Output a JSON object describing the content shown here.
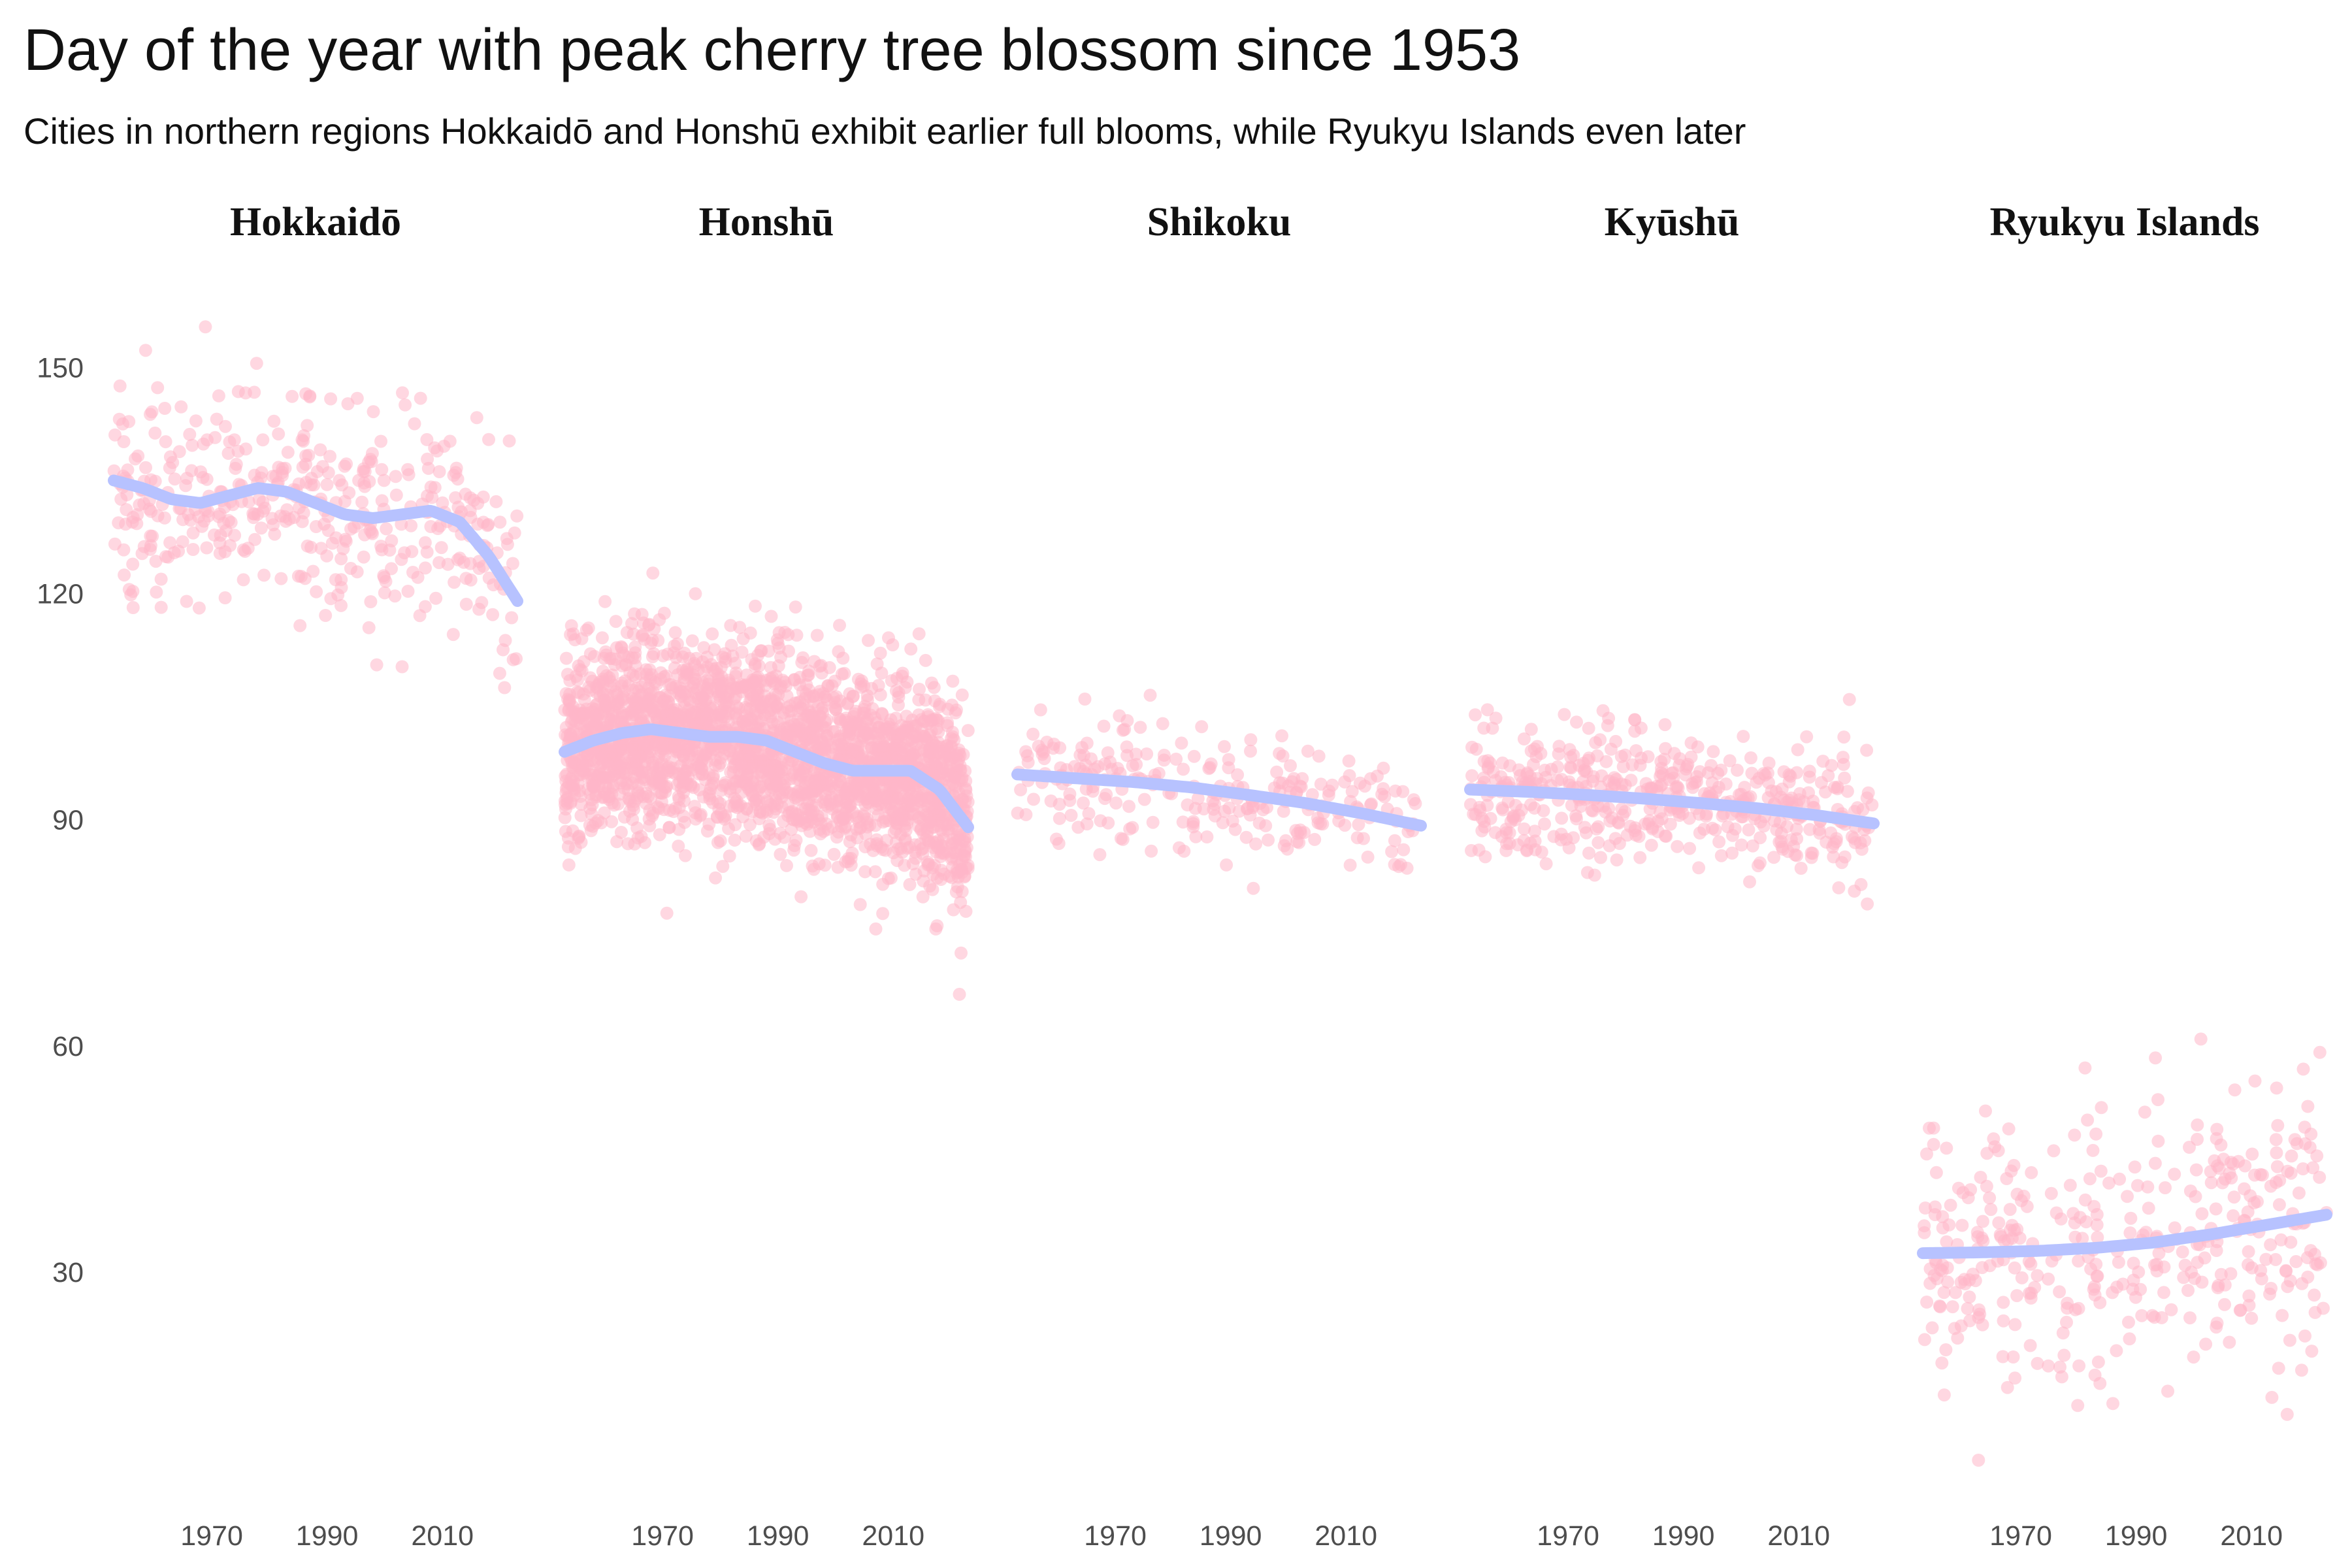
{
  "title": "Day of the year with peak cherry tree blossom since 1953",
  "subtitle": "Cities in northern regions Hokkaidō and Honshū exhibit earlier full blooms, while Ryukyu Islands even later",
  "colors": {
    "points": "#ffb6c8",
    "trend": "#b7c2ff",
    "text": "#111111",
    "tick_text": "#4d4d4d"
  },
  "chart_data": {
    "type": "scatter",
    "title": "Day of the year with peak cherry tree blossom since 1953",
    "subtitle": "Cities in northern regions Hokkaidō and Honshū exhibit earlier full blooms, while Ryukyu Islands even later",
    "xlabel": "",
    "ylabel": "",
    "xlim": [
      1953,
      2023
    ],
    "ylim": [
      2,
      158
    ],
    "x_ticks": [
      1970,
      1990,
      2010
    ],
    "y_ticks": [
      30,
      60,
      90,
      120,
      150
    ],
    "grid": false,
    "legend": "none",
    "facets": [
      {
        "name": "Hokkaidō",
        "point_count": 420,
        "spread": 7,
        "trend": {
          "x": [
            1953,
            1958,
            1963,
            1968,
            1973,
            1978,
            1983,
            1988,
            1993,
            1998,
            2003,
            2008,
            2013,
            2018,
            2023
          ],
          "y": [
            135,
            134,
            132.5,
            132,
            133,
            134,
            133.5,
            132,
            130.5,
            130,
            130.5,
            131,
            129.5,
            125,
            119
          ]
        }
      },
      {
        "name": "Honshū",
        "point_count": 2600,
        "spread": 6.5,
        "trend": {
          "x": [
            1953,
            1958,
            1963,
            1968,
            1973,
            1978,
            1983,
            1988,
            1993,
            1998,
            2003,
            2008,
            2013,
            2018,
            2023
          ],
          "y": [
            99,
            100.5,
            101.5,
            102,
            101.5,
            101,
            101,
            100.5,
            99,
            97.5,
            96.5,
            96.5,
            96.5,
            94,
            89
          ]
        }
      },
      {
        "name": "Shikoku",
        "point_count": 260,
        "spread": 4,
        "trend": {
          "x": [
            1953,
            1963,
            1973,
            1983,
            1993,
            2003,
            2013,
            2023
          ],
          "y": [
            96,
            95.5,
            95,
            94.3,
            93.3,
            92.2,
            90.8,
            89.2
          ]
        }
      },
      {
        "name": "Kyūshū",
        "point_count": 500,
        "spread": 4.3,
        "trend": {
          "x": [
            1953,
            1963,
            1973,
            1983,
            1993,
            2003,
            2013,
            2023
          ],
          "y": [
            94,
            93.7,
            93.3,
            92.8,
            92.2,
            91.5,
            90.6,
            89.5
          ]
        }
      },
      {
        "name": "Ryukyu Islands",
        "point_count": 380,
        "spread": 8.5,
        "trend": {
          "x": [
            1953,
            1963,
            1973,
            1983,
            1993,
            2003,
            2013,
            2023
          ],
          "y": [
            32.5,
            32.6,
            32.8,
            33.2,
            33.9,
            35,
            36.3,
            37.6
          ]
        }
      }
    ]
  }
}
